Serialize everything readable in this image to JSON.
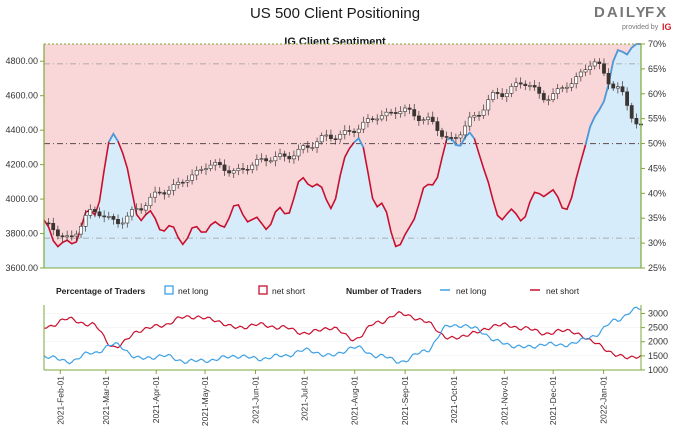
{
  "title": "US 500 Client Positioning",
  "subtitle": "IG Client Sentiment",
  "brand": {
    "name_left": "DAILY",
    "name_right": "FX",
    "tagline": "provided by",
    "tag_logo": "IG",
    "accent": "#d4202a"
  },
  "colors": {
    "candle": "#3b3532",
    "net_long": "#3ea1e6",
    "net_short": "#c8102e",
    "long_fill": "#d7ecfb",
    "short_fill": "#f9d6d8",
    "axis": "#7fa83b"
  },
  "legend": {
    "pct_label": "Percentage of Traders",
    "num_label": "Number of Traders",
    "net_long": "net long",
    "net_short": "net short"
  },
  "chart_data": [
    {
      "type": "line",
      "title": "IG Client Sentiment",
      "left_axis": {
        "ylim": [
          3600,
          4900
        ],
        "ticks": [
          "3600.00",
          "3800.00",
          "4000.00",
          "4200.00",
          "4400.00",
          "4600.00",
          "4800.00"
        ]
      },
      "right_axis": {
        "ylim": [
          25,
          70
        ],
        "ticks": [
          "25%",
          "30%",
          "35%",
          "40%",
          "45%",
          "50%",
          "55%",
          "60%",
          "65%",
          "70%"
        ]
      },
      "reference_lines": {
        "percent": [
          31,
          50,
          66
        ]
      },
      "price_series": {
        "name": "US 500",
        "x": [
          "2021-01-22",
          "2021-02-01",
          "2021-02-15",
          "2021-03-01",
          "2021-03-15",
          "2021-04-01",
          "2021-04-15",
          "2021-05-01",
          "2021-05-15",
          "2021-06-01",
          "2021-06-15",
          "2021-07-01",
          "2021-07-15",
          "2021-08-01",
          "2021-08-15",
          "2021-09-01",
          "2021-09-15",
          "2021-10-01",
          "2021-10-15",
          "2021-11-01",
          "2021-11-15",
          "2021-12-01",
          "2021-12-15",
          "2022-01-01",
          "2022-01-15",
          "2022-01-24"
        ],
        "values": [
          3840,
          3780,
          3920,
          3870,
          3950,
          4040,
          4130,
          4190,
          4170,
          4210,
          4250,
          4300,
          4360,
          4410,
          4470,
          4530,
          4450,
          4350,
          4470,
          4610,
          4680,
          4580,
          4680,
          4780,
          4650,
          4410
        ]
      },
      "series": [
        {
          "name": "net long",
          "unit": "%",
          "values": [
            33,
            30,
            35,
            53,
            35,
            34,
            31,
            33,
            37,
            33,
            37,
            42,
            39,
            51,
            38,
            30,
            40,
            51,
            50,
            37,
            35,
            41,
            38,
            54,
            68,
            70
          ]
        },
        {
          "name": "net short",
          "unit": "%",
          "values": [
            67,
            70,
            65,
            47,
            65,
            66,
            69,
            67,
            63,
            67,
            63,
            58,
            61,
            49,
            62,
            70,
            60,
            49,
            50,
            63,
            65,
            59,
            62,
            46,
            32,
            30
          ]
        }
      ]
    },
    {
      "type": "line",
      "title": "Number of Traders",
      "y_ticks": [
        "1000",
        "1500",
        "2000",
        "2500",
        "3000"
      ],
      "ylim": [
        1000,
        3300
      ],
      "x_ticks": [
        "2021-Feb-01",
        "2021-Mar-01",
        "2021-Apr-01",
        "2021-May-01",
        "2021-Jun-01",
        "2021-Jul-01",
        "2021-Aug-01",
        "2021-Sep-01",
        "2021-Oct-01",
        "2021-Nov-01",
        "2021-Dec-01",
        "2022-Jan-01"
      ],
      "series": [
        {
          "name": "net long",
          "values": [
            1500,
            1300,
            1600,
            1900,
            1400,
            1500,
            1300,
            1350,
            1500,
            1400,
            1500,
            1700,
            1500,
            1800,
            1500,
            1300,
            1700,
            2600,
            2500,
            2000,
            1800,
            1900,
            1900,
            2200,
            2800,
            3200
          ]
        },
        {
          "name": "net short",
          "values": [
            2500,
            2800,
            2600,
            1800,
            2400,
            2600,
            2900,
            2800,
            2500,
            2600,
            2500,
            2300,
            2500,
            2100,
            2700,
            3000,
            2700,
            2100,
            2300,
            2600,
            2500,
            2300,
            2400,
            2000,
            1500,
            1450
          ]
        }
      ]
    }
  ]
}
